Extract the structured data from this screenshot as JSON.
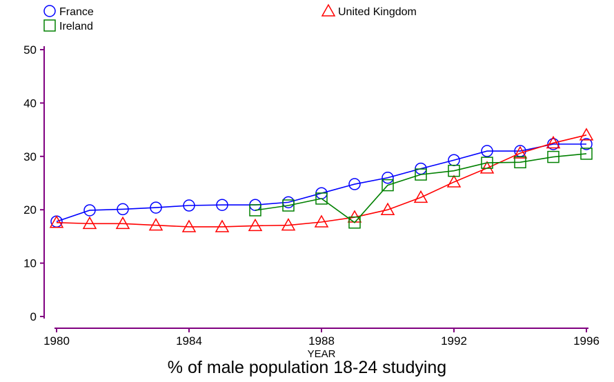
{
  "chart_data": {
    "type": "line",
    "title": "",
    "xlabel": "YEAR",
    "ylabel": "",
    "caption": "% of male population 18-24 studying",
    "xlim": [
      1980,
      1996
    ],
    "ylim": [
      0,
      50
    ],
    "x_ticks": [
      1980,
      1984,
      1988,
      1992,
      1996
    ],
    "y_ticks": [
      0,
      10,
      20,
      30,
      40,
      50
    ],
    "grid": false,
    "legend_position": "top",
    "series": [
      {
        "name": "France",
        "marker": "circle",
        "color": "#0000ff",
        "x": [
          1980,
          1981,
          1982,
          1983,
          1984,
          1985,
          1986,
          1987,
          1988,
          1989,
          1990,
          1991,
          1992,
          1993,
          1994,
          1995,
          1996
        ],
        "y": [
          17.8,
          19.9,
          20.1,
          20.4,
          20.8,
          20.9,
          20.9,
          21.4,
          23.1,
          24.8,
          26.0,
          27.7,
          29.3,
          31.0,
          31.0,
          32.3,
          32.3
        ]
      },
      {
        "name": "Ireland",
        "marker": "square",
        "color": "#008000",
        "x": [
          1986,
          1987,
          1988,
          1989,
          1990,
          1991,
          1992,
          1993,
          1994,
          1995,
          1996
        ],
        "y": [
          19.9,
          20.8,
          22.1,
          17.6,
          24.6,
          26.6,
          27.3,
          28.8,
          28.9,
          29.9,
          30.5
        ]
      },
      {
        "name": "United Kingdom",
        "marker": "triangle",
        "color": "#ff0000",
        "x": [
          1980,
          1981,
          1982,
          1983,
          1984,
          1985,
          1986,
          1987,
          1988,
          1989,
          1990,
          1991,
          1992,
          1993,
          1994,
          1995,
          1996
        ],
        "y": [
          17.6,
          17.4,
          17.4,
          17.1,
          16.8,
          16.8,
          17.0,
          17.1,
          17.7,
          18.6,
          20.0,
          22.3,
          25.2,
          27.8,
          30.6,
          32.5,
          34.0
        ]
      }
    ]
  },
  "colors": {
    "axis": "#800080"
  }
}
